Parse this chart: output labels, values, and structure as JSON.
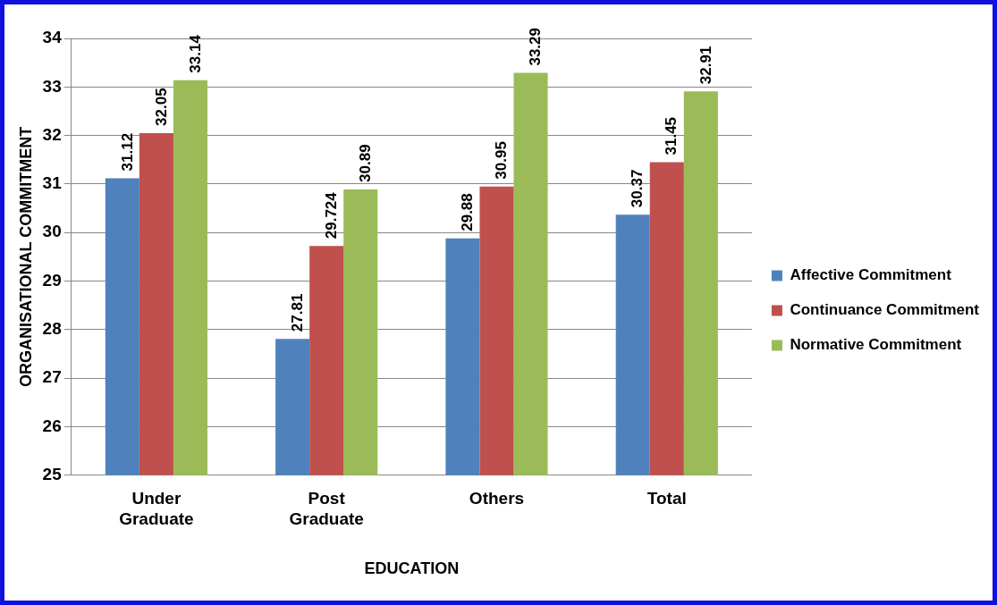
{
  "chart_data": {
    "type": "bar",
    "xlabel": "EDUCATION",
    "ylabel": "ORGANISATIONAL COMMITMENT",
    "categories": [
      "Under Graduate",
      "Post Graduate",
      "Others",
      "Total"
    ],
    "series": [
      {
        "name": "Affective Commitment",
        "color": "#4f81bd",
        "values": [
          31.12,
          27.81,
          29.88,
          30.37
        ]
      },
      {
        "name": "Continuance Commitment",
        "color": "#c0504d",
        "values": [
          32.05,
          29.724,
          30.95,
          31.45
        ]
      },
      {
        "name": "Normative Commitment",
        "color": "#9bbb59",
        "values": [
          33.14,
          30.89,
          33.29,
          32.91
        ]
      }
    ],
    "ylim": [
      25,
      34
    ],
    "yticks": [
      25,
      26,
      27,
      28,
      29,
      30,
      31,
      32,
      33,
      34
    ],
    "grid": "y",
    "legend": "right",
    "data_labels": true
  }
}
